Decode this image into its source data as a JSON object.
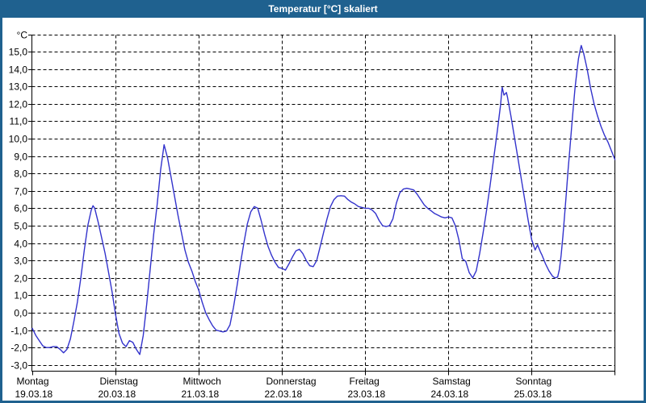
{
  "window": {
    "title": "Temperatur [°C] skaliert"
  },
  "colors": {
    "titlebar": "#1f618f",
    "frame_border": "#1f618f",
    "line": "#3333cc",
    "grid": "#000000",
    "background": "#ffffff"
  },
  "chart_data": {
    "type": "line",
    "title": "Temperatur [°C] skaliert",
    "y_axis_unit": "°C",
    "ylim": [
      -3,
      16
    ],
    "grid": "dashed: horizontal every 1°C, vertical every day",
    "legend_position": "none",
    "y_ticks": [
      {
        "v": 15,
        "label": "15,0"
      },
      {
        "v": 14,
        "label": "14,0"
      },
      {
        "v": 13,
        "label": "13,0"
      },
      {
        "v": 12,
        "label": "12,0"
      },
      {
        "v": 11,
        "label": "11,0"
      },
      {
        "v": 10,
        "label": "10,0"
      },
      {
        "v": 9,
        "label": "9,0"
      },
      {
        "v": 8,
        "label": "8,0"
      },
      {
        "v": 7,
        "label": "7,0"
      },
      {
        "v": 6,
        "label": "6,0"
      },
      {
        "v": 5,
        "label": "5,0"
      },
      {
        "v": 4,
        "label": "4,0"
      },
      {
        "v": 3,
        "label": "3,0"
      },
      {
        "v": 2,
        "label": "2,0"
      },
      {
        "v": 1,
        "label": "1,0"
      },
      {
        "v": 0,
        "label": "0,0"
      },
      {
        "v": -1,
        "label": "-1,0"
      },
      {
        "v": -2,
        "label": "-2,0"
      },
      {
        "v": -3,
        "label": "-3,0"
      }
    ],
    "x_days": [
      {
        "name": "Montag",
        "date": "19.03.18"
      },
      {
        "name": "Dienstag",
        "date": "20.03.18"
      },
      {
        "name": "Mittwoch",
        "date": "21.03.18"
      },
      {
        "name": "Donnerstag",
        "date": "22.03.18"
      },
      {
        "name": "Freitag",
        "date": "23.03.18"
      },
      {
        "name": "Samstag",
        "date": "24.03.18"
      },
      {
        "name": "Sonntag",
        "date": "25.03.18"
      }
    ],
    "x_range_hours": 168,
    "series": [
      {
        "name": "Temperatur",
        "color": "#3333cc",
        "points": [
          [
            0,
            -0.9
          ],
          [
            1,
            -1.3
          ],
          [
            2,
            -1.6
          ],
          [
            3,
            -1.9
          ],
          [
            4,
            -2.0
          ],
          [
            5,
            -2.0
          ],
          [
            6,
            -1.95
          ],
          [
            7,
            -1.95
          ],
          [
            8,
            -2.1
          ],
          [
            9,
            -2.3
          ],
          [
            10,
            -2.1
          ],
          [
            11,
            -1.5
          ],
          [
            12,
            -0.5
          ],
          [
            13,
            0.6
          ],
          [
            14,
            2.0
          ],
          [
            15,
            3.6
          ],
          [
            16,
            5.0
          ],
          [
            17,
            5.9
          ],
          [
            17.5,
            6.15
          ],
          [
            18,
            6.0
          ],
          [
            19,
            5.2
          ],
          [
            20,
            4.3
          ],
          [
            21,
            3.4
          ],
          [
            22,
            2.3
          ],
          [
            23,
            1.2
          ],
          [
            24,
            -0.1
          ],
          [
            25,
            -1.2
          ],
          [
            26,
            -1.75
          ],
          [
            27,
            -1.95
          ],
          [
            28,
            -1.6
          ],
          [
            29,
            -1.7
          ],
          [
            30,
            -2.1
          ],
          [
            31,
            -2.4
          ],
          [
            32,
            -1.3
          ],
          [
            33,
            0.5
          ],
          [
            34,
            2.5
          ],
          [
            35,
            4.5
          ],
          [
            36,
            6.2
          ],
          [
            37,
            8.2
          ],
          [
            38,
            9.65
          ],
          [
            39,
            8.9
          ],
          [
            40,
            7.8
          ],
          [
            41,
            6.7
          ],
          [
            42,
            5.6
          ],
          [
            43,
            4.6
          ],
          [
            44,
            3.6
          ],
          [
            45,
            2.9
          ],
          [
            46,
            2.4
          ],
          [
            47,
            1.8
          ],
          [
            48,
            1.3
          ],
          [
            49,
            0.6
          ],
          [
            50,
            0.0
          ],
          [
            51,
            -0.4
          ],
          [
            52,
            -0.75
          ],
          [
            53,
            -1.0
          ],
          [
            54,
            -1.05
          ],
          [
            55,
            -1.1
          ],
          [
            56,
            -1.05
          ],
          [
            57,
            -0.7
          ],
          [
            58,
            0.3
          ],
          [
            59,
            1.5
          ],
          [
            60,
            2.8
          ],
          [
            61,
            4.0
          ],
          [
            62,
            5.1
          ],
          [
            63,
            5.8
          ],
          [
            64,
            6.1
          ],
          [
            65,
            6.0
          ],
          [
            66,
            5.3
          ],
          [
            67,
            4.5
          ],
          [
            68,
            3.8
          ],
          [
            69,
            3.3
          ],
          [
            70,
            2.9
          ],
          [
            71,
            2.6
          ],
          [
            72,
            2.55
          ],
          [
            73,
            2.45
          ],
          [
            74,
            2.8
          ],
          [
            75,
            3.2
          ],
          [
            76,
            3.55
          ],
          [
            77,
            3.65
          ],
          [
            78,
            3.4
          ],
          [
            79,
            3.0
          ],
          [
            80,
            2.7
          ],
          [
            81,
            2.65
          ],
          [
            82,
            3.0
          ],
          [
            83,
            3.8
          ],
          [
            84,
            4.6
          ],
          [
            85,
            5.4
          ],
          [
            86,
            6.1
          ],
          [
            87,
            6.5
          ],
          [
            88,
            6.7
          ],
          [
            89,
            6.72
          ],
          [
            90,
            6.7
          ],
          [
            91,
            6.5
          ],
          [
            92,
            6.35
          ],
          [
            93,
            6.25
          ],
          [
            94,
            6.1
          ],
          [
            95,
            6.05
          ],
          [
            96,
            6.0
          ],
          [
            97,
            6.0
          ],
          [
            98,
            5.9
          ],
          [
            99,
            5.7
          ],
          [
            100,
            5.3
          ],
          [
            101,
            5.0
          ],
          [
            102,
            4.95
          ],
          [
            103,
            5.0
          ],
          [
            104,
            5.4
          ],
          [
            105,
            6.3
          ],
          [
            106,
            6.9
          ],
          [
            107,
            7.1
          ],
          [
            108,
            7.15
          ],
          [
            109,
            7.1
          ],
          [
            110,
            7.05
          ],
          [
            111,
            6.8
          ],
          [
            112,
            6.5
          ],
          [
            113,
            6.2
          ],
          [
            114,
            6.0
          ],
          [
            115,
            5.85
          ],
          [
            116,
            5.7
          ],
          [
            117,
            5.6
          ],
          [
            118,
            5.5
          ],
          [
            119,
            5.45
          ],
          [
            120,
            5.5
          ],
          [
            121,
            5.45
          ],
          [
            122,
            5.0
          ],
          [
            123,
            4.2
          ],
          [
            124,
            3.1
          ],
          [
            125,
            2.95
          ],
          [
            126,
            2.3
          ],
          [
            127,
            2.0
          ],
          [
            128,
            2.4
          ],
          [
            129,
            3.4
          ],
          [
            130,
            4.6
          ],
          [
            131,
            5.9
          ],
          [
            132,
            7.3
          ],
          [
            133,
            8.8
          ],
          [
            134,
            10.3
          ],
          [
            135,
            11.9
          ],
          [
            135.5,
            12.95
          ],
          [
            136,
            12.5
          ],
          [
            136.7,
            12.65
          ],
          [
            137,
            12.4
          ],
          [
            138,
            11.3
          ],
          [
            139,
            10.1
          ],
          [
            140,
            8.9
          ],
          [
            141,
            7.7
          ],
          [
            142,
            6.5
          ],
          [
            143,
            5.3
          ],
          [
            144,
            4.2
          ],
          [
            145,
            3.6
          ],
          [
            145.7,
            3.9
          ],
          [
            146.5,
            3.5
          ],
          [
            147,
            3.3
          ],
          [
            148,
            2.8
          ],
          [
            149,
            2.4
          ],
          [
            150,
            2.1
          ],
          [
            150.7,
            2.0
          ],
          [
            151.5,
            2.05
          ],
          [
            152,
            2.5
          ],
          [
            152.5,
            3.3
          ],
          [
            153,
            4.4
          ],
          [
            153.5,
            5.6
          ],
          [
            154,
            6.9
          ],
          [
            154.5,
            8.2
          ],
          [
            155,
            9.4
          ],
          [
            155.5,
            10.6
          ],
          [
            156,
            11.8
          ],
          [
            156.5,
            12.9
          ],
          [
            157,
            13.8
          ],
          [
            157.5,
            14.6
          ],
          [
            158,
            15.1
          ],
          [
            158.3,
            15.35
          ],
          [
            159,
            14.9
          ],
          [
            160,
            14.0
          ],
          [
            161,
            12.9
          ],
          [
            162,
            12.0
          ],
          [
            163,
            11.3
          ],
          [
            164,
            10.7
          ],
          [
            165,
            10.2
          ],
          [
            166,
            9.8
          ],
          [
            167,
            9.3
          ],
          [
            168,
            8.8
          ]
        ]
      }
    ]
  }
}
